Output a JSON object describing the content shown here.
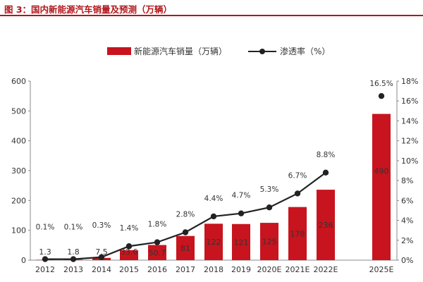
{
  "header": {
    "title": "图 3：国内新能源汽车销量及预测（万辆）"
  },
  "colors": {
    "bar": "#c8141e",
    "line": "#222222",
    "accent": "#b1161b"
  },
  "chart_data": {
    "type": "bar",
    "title": "",
    "categories": [
      "2012",
      "2013",
      "2014",
      "2015",
      "2016",
      "2017",
      "2018",
      "2019",
      "2020E",
      "2021E",
      "2022E",
      "2025E"
    ],
    "series": [
      {
        "name": "新能源汽车销量（万辆）",
        "type": "bar",
        "axis": "left",
        "values": [
          1.3,
          1.8,
          7.5,
          33.6,
          50.7,
          81,
          122,
          121,
          125,
          178,
          236,
          490
        ],
        "labels": [
          "1.3",
          "1.8",
          "7.5",
          "33.6",
          "50.7",
          "81",
          "122",
          "121",
          "125",
          "178",
          "236",
          "490"
        ]
      },
      {
        "name": "渗透率（%）",
        "type": "line",
        "axis": "right",
        "values": [
          0.1,
          0.1,
          0.3,
          1.4,
          1.8,
          2.8,
          4.4,
          4.7,
          5.3,
          6.7,
          8.8,
          16.5
        ],
        "labels": [
          "0.1%",
          "0.1%",
          "0.3%",
          "1.4%",
          "1.8%",
          "2.8%",
          "4.4%",
          "4.7%",
          "5.3%",
          "6.7%",
          "8.8%",
          "16.5%"
        ],
        "connected_through": "2022E",
        "isolated_point": "2025E"
      }
    ],
    "y_left": {
      "range": [
        0,
        600
      ],
      "ticks": [
        0,
        100,
        200,
        300,
        400,
        500,
        600
      ],
      "tick_labels": [
        "0",
        "100",
        "200",
        "300",
        "400",
        "500",
        "600"
      ]
    },
    "y_right": {
      "range": [
        0,
        18
      ],
      "ticks": [
        0,
        2,
        4,
        6,
        8,
        10,
        12,
        14,
        16,
        18
      ],
      "tick_labels": [
        "0%",
        "2%",
        "4%",
        "6%",
        "8%",
        "10%",
        "12%",
        "14%",
        "16%",
        "18%"
      ]
    },
    "xlabel": "",
    "ylabel": "",
    "grid": false,
    "legend": {
      "placement": "top-center",
      "entries": [
        "新能源汽车销量（万辆）",
        "渗透率（%）"
      ]
    }
  }
}
